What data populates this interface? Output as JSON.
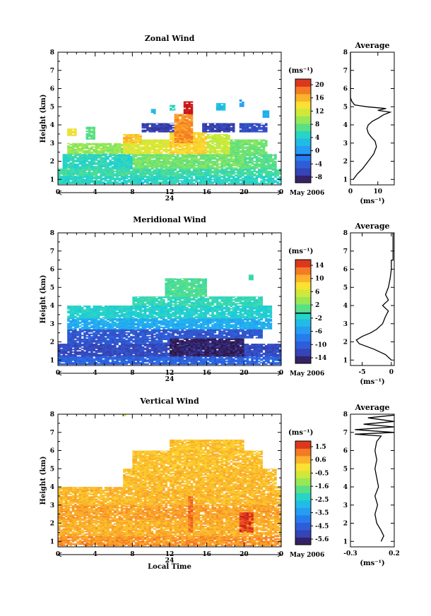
{
  "chart_data": [
    {
      "type": "heatmap",
      "title": "Zonal Wind",
      "xlabel": "",
      "ylabel": "Height (km)",
      "xlim": [
        0,
        24
      ],
      "ylim": [
        0.7,
        8
      ],
      "xticks": [
        "0",
        "4",
        "8",
        "12",
        "16",
        "20",
        "0"
      ],
      "yticks": [
        "1",
        "2",
        "3",
        "4",
        "5",
        "6",
        "7",
        "8"
      ],
      "date_marker": "24",
      "date_note": "May 2006",
      "colorbar": {
        "unit": "(ms⁻¹)",
        "min": -8,
        "max": 22,
        "ticks": [
          "20",
          "16",
          "12",
          "8",
          "4",
          "0",
          "-4",
          "-8"
        ],
        "marker": 0
      },
      "profile": {
        "title": "Average",
        "xlabel": "(ms⁻¹)",
        "xlim": [
          0,
          16
        ],
        "xticks": [
          "0",
          "10"
        ],
        "points": [
          [
            1.0,
            1.0
          ],
          [
            2.5,
            1.3
          ],
          [
            4.5,
            1.6
          ],
          [
            6.5,
            2.0
          ],
          [
            8.5,
            2.4
          ],
          [
            9.5,
            2.8
          ],
          [
            9.0,
            3.1
          ],
          [
            7.5,
            3.35
          ],
          [
            6.5,
            3.55
          ],
          [
            6.0,
            3.8
          ],
          [
            6.5,
            4.0
          ],
          [
            8.0,
            4.2
          ],
          [
            10.5,
            4.4
          ],
          [
            12.0,
            4.55
          ],
          [
            14.5,
            4.7
          ],
          [
            10.0,
            4.8
          ],
          [
            13.0,
            4.9
          ],
          [
            6.0,
            5.0
          ],
          [
            1.5,
            5.1
          ],
          [
            0.5,
            5.3
          ],
          [
            0.0,
            5.5
          ],
          [
            0.0,
            8.0
          ]
        ]
      },
      "regions": [
        {
          "t0": 0.0,
          "t1": 24.0,
          "h0": 0.75,
          "h1": 1.2,
          "v": 6
        },
        {
          "t0": 0.0,
          "t1": 24.0,
          "h0": 1.2,
          "h1": 1.6,
          "v": 7
        },
        {
          "t0": 0.5,
          "t1": 8.0,
          "h0": 1.6,
          "h1": 2.4,
          "v": 6
        },
        {
          "t0": 8.0,
          "t1": 20.0,
          "h0": 1.6,
          "h1": 2.4,
          "v": 9
        },
        {
          "t0": 20.0,
          "t1": 23.5,
          "h0": 1.6,
          "h1": 2.4,
          "v": 8
        },
        {
          "t0": 1.0,
          "t1": 7.0,
          "h0": 2.4,
          "h1": 3.0,
          "v": 10
        },
        {
          "t0": 7.0,
          "t1": 12.0,
          "h0": 2.4,
          "h1": 3.2,
          "v": 13
        },
        {
          "t0": 12.0,
          "t1": 16.0,
          "h0": 2.4,
          "h1": 3.6,
          "v": 15
        },
        {
          "t0": 16.0,
          "t1": 18.5,
          "h0": 2.4,
          "h1": 3.5,
          "v": 12
        },
        {
          "t0": 18.5,
          "t1": 22.5,
          "h0": 2.4,
          "h1": 3.2,
          "v": 9
        },
        {
          "t0": 1.0,
          "t1": 2.0,
          "h0": 3.4,
          "h1": 3.8,
          "v": 14
        },
        {
          "t0": 3.0,
          "t1": 4.0,
          "h0": 3.2,
          "h1": 3.9,
          "v": 8
        },
        {
          "t0": 7.0,
          "t1": 9.0,
          "h0": 3.0,
          "h1": 3.5,
          "v": 16
        },
        {
          "t0": 9.0,
          "t1": 12.5,
          "h0": 3.6,
          "h1": 4.1,
          "v": -5
        },
        {
          "t0": 12.5,
          "t1": 14.5,
          "h0": 3.0,
          "h1": 4.6,
          "v": 18
        },
        {
          "t0": 13.5,
          "t1": 14.5,
          "h0": 4.6,
          "h1": 5.3,
          "v": 22
        },
        {
          "t0": 15.5,
          "t1": 19.0,
          "h0": 3.6,
          "h1": 4.1,
          "v": -5
        },
        {
          "t0": 19.5,
          "t1": 22.5,
          "h0": 3.6,
          "h1": 4.1,
          "v": -4
        },
        {
          "t0": 10.0,
          "t1": 10.5,
          "h0": 4.6,
          "h1": 4.9,
          "v": 4
        },
        {
          "t0": 12.0,
          "t1": 12.6,
          "h0": 4.8,
          "h1": 5.1,
          "v": 6
        },
        {
          "t0": 17.0,
          "t1": 18.0,
          "h0": 4.8,
          "h1": 5.2,
          "v": 4
        },
        {
          "t0": 19.5,
          "t1": 20.0,
          "h0": 5.0,
          "h1": 5.4,
          "v": 2
        },
        {
          "t0": 22.0,
          "t1": 22.7,
          "h0": 4.4,
          "h1": 4.8,
          "v": 3
        }
      ]
    },
    {
      "type": "heatmap",
      "title": "Meridional Wind",
      "xlabel": "",
      "ylabel": "Height (km)",
      "xlim": [
        0,
        24
      ],
      "ylim": [
        0.7,
        8
      ],
      "xticks": [
        "0",
        "4",
        "8",
        "12",
        "16",
        "20",
        "0"
      ],
      "yticks": [
        "1",
        "2",
        "3",
        "4",
        "5",
        "6",
        "7",
        "8"
      ],
      "date_marker": "24",
      "date_note": "May 2006",
      "colorbar": {
        "unit": "(ms⁻¹)",
        "min": -15,
        "max": 16,
        "ticks": [
          "14",
          "10",
          "6",
          "2",
          "-2",
          "-6",
          "-10",
          "-14"
        ],
        "marker": 0
      },
      "profile": {
        "title": "Average",
        "xlabel": "(ms⁻¹)",
        "xlim": [
          -7,
          0.5
        ],
        "xticks": [
          "-5",
          "0"
        ],
        "points": [
          [
            0.0,
            1.0
          ],
          [
            -1.0,
            1.3
          ],
          [
            -3.0,
            1.6
          ],
          [
            -5.5,
            1.9
          ],
          [
            -6.0,
            2.1
          ],
          [
            -5.0,
            2.3
          ],
          [
            -3.5,
            2.5
          ],
          [
            -2.5,
            2.7
          ],
          [
            -1.5,
            3.0
          ],
          [
            -1.0,
            3.4
          ],
          [
            -0.5,
            3.7
          ],
          [
            -1.5,
            4.0
          ],
          [
            -0.5,
            4.3
          ],
          [
            -1.0,
            4.6
          ],
          [
            -0.5,
            5.0
          ],
          [
            -0.2,
            5.5
          ],
          [
            0.0,
            6.0
          ],
          [
            0.0,
            6.5
          ],
          [
            0.3,
            6.5
          ],
          [
            0.3,
            8.0
          ]
        ]
      },
      "regions": [
        {
          "t0": 0.0,
          "t1": 24.0,
          "h0": 0.75,
          "h1": 1.2,
          "v": -9
        },
        {
          "t0": 0.0,
          "t1": 24.0,
          "h0": 1.2,
          "h1": 1.9,
          "v": -11
        },
        {
          "t0": 12.0,
          "t1": 20.0,
          "h0": 1.2,
          "h1": 2.2,
          "v": -14
        },
        {
          "t0": 1.0,
          "t1": 12.0,
          "h0": 1.9,
          "h1": 2.7,
          "v": -10
        },
        {
          "t0": 12.0,
          "t1": 22.0,
          "h0": 2.2,
          "h1": 2.7,
          "v": -10
        },
        {
          "t0": 1.0,
          "t1": 23.0,
          "h0": 2.7,
          "h1": 3.3,
          "v": -4
        },
        {
          "t0": 1.0,
          "t1": 23.0,
          "h0": 3.3,
          "h1": 4.0,
          "v": -1
        },
        {
          "t0": 8.0,
          "t1": 22.0,
          "h0": 4.0,
          "h1": 4.5,
          "v": 0
        },
        {
          "t0": 11.5,
          "t1": 16.0,
          "h0": 4.5,
          "h1": 5.5,
          "v": 1
        },
        {
          "t0": 20.5,
          "t1": 21.0,
          "h0": 5.4,
          "h1": 5.7,
          "v": 0
        }
      ]
    },
    {
      "type": "heatmap",
      "title": "Vertical Wind",
      "xlabel": "Local Time",
      "ylabel": "Height (km)",
      "xlim": [
        0,
        24
      ],
      "ylim": [
        0.7,
        8
      ],
      "xticks": [
        "0",
        "4",
        "8",
        "12",
        "16",
        "20",
        "0"
      ],
      "yticks": [
        "1",
        "2",
        "3",
        "4",
        "5",
        "6",
        "7",
        "8"
      ],
      "date_marker": "24",
      "date_note": "May 2006",
      "colorbar": {
        "unit": "(ms⁻¹)",
        "min": -6,
        "max": 2,
        "ticks": [
          "1.5",
          "0.6",
          "-0.5",
          "-1.6",
          "-2.5",
          "-3.5",
          "-4.5",
          "-5.6"
        ]
      },
      "profile": {
        "title": "Average",
        "xlabel": "(ms⁻¹)",
        "xlim": [
          -0.3,
          0.2
        ],
        "xticks": [
          "-0.3",
          "0.2"
        ],
        "points": [
          [
            0.05,
            1.0
          ],
          [
            0.08,
            1.3
          ],
          [
            0.05,
            1.6
          ],
          [
            0.0,
            2.0
          ],
          [
            -0.02,
            2.5
          ],
          [
            0.01,
            3.0
          ],
          [
            -0.02,
            3.5
          ],
          [
            0.02,
            4.0
          ],
          [
            0.0,
            4.5
          ],
          [
            -0.02,
            5.0
          ],
          [
            0.0,
            5.5
          ],
          [
            -0.02,
            6.0
          ],
          [
            0.0,
            6.5
          ],
          [
            0.05,
            6.8
          ],
          [
            -0.25,
            6.9
          ],
          [
            0.2,
            7.0
          ],
          [
            -0.25,
            7.15
          ],
          [
            0.2,
            7.3
          ],
          [
            -0.15,
            7.45
          ],
          [
            0.2,
            7.6
          ],
          [
            -0.1,
            7.8
          ],
          [
            0.2,
            7.95
          ]
        ]
      },
      "regions": [
        {
          "t0": 0.0,
          "t1": 24.0,
          "h0": 0.75,
          "h1": 1.3,
          "v": 0.9
        },
        {
          "t0": 0.0,
          "t1": 24.0,
          "h0": 1.3,
          "h1": 2.2,
          "v": 0.6
        },
        {
          "t0": 0.0,
          "t1": 24.0,
          "h0": 2.2,
          "h1": 3.0,
          "v": 0.75
        },
        {
          "t0": 0.0,
          "t1": 24.0,
          "h0": 3.0,
          "h1": 4.0,
          "v": 0.5
        },
        {
          "t0": 7.0,
          "t1": 23.5,
          "h0": 4.0,
          "h1": 5.0,
          "v": 0.45
        },
        {
          "t0": 8.0,
          "t1": 22.0,
          "h0": 5.0,
          "h1": 6.0,
          "v": 0.4
        },
        {
          "t0": 12.0,
          "t1": 20.0,
          "h0": 6.0,
          "h1": 6.6,
          "v": 0.4
        },
        {
          "t0": 19.5,
          "t1": 21.0,
          "h0": 1.5,
          "h1": 2.6,
          "v": 1.7
        },
        {
          "t0": 14.0,
          "t1": 14.5,
          "h0": 1.5,
          "h1": 3.5,
          "v": 1.2
        },
        {
          "t0": 7.0,
          "t1": 7.3,
          "h0": 7.9,
          "h1": 8.0,
          "v": -0.5
        }
      ]
    }
  ]
}
